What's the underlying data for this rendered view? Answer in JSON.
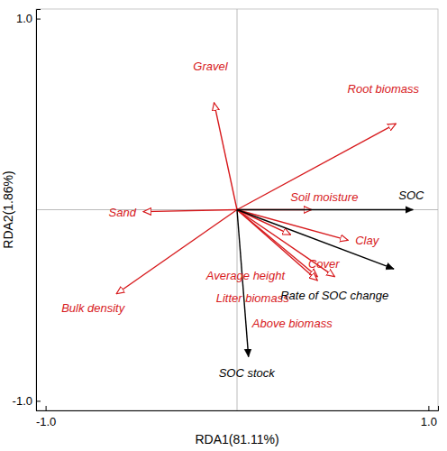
{
  "chart_data": {
    "type": "biplot",
    "x_label": "RDA1(81.11%)",
    "y_label": "RDA2(1.86%)",
    "xlim": [
      -1.05,
      1.05
    ],
    "ylim": [
      -1.05,
      1.05
    ],
    "xticks": [
      {
        "value": -1,
        "label": "-1.0"
      },
      {
        "value": 1,
        "label": "1.0"
      }
    ],
    "yticks": [
      {
        "value": -1,
        "label": "-1.0"
      },
      {
        "value": 1,
        "label": "1.0"
      }
    ],
    "grid": false,
    "series": [
      {
        "color": "#d7191c",
        "marker": "open-arrow",
        "labels": [
          "Gravel",
          "Root biomass",
          "Soil moisture",
          "Sand",
          "Clay",
          "Average height",
          "Cover",
          "Litter biomass",
          "Above biomass",
          "Bulk density"
        ],
        "x": [
          -0.12,
          0.83,
          0.39,
          -0.49,
          0.58,
          0.28,
          0.51,
          0.42,
          0.42,
          -0.63
        ],
        "values": [
          0.56,
          0.45,
          0.0,
          -0.01,
          -0.16,
          -0.13,
          -0.35,
          -0.35,
          -0.37,
          -0.44
        ]
      },
      {
        "color": "#000000",
        "marker": "filled-arrow",
        "labels": [
          "SOC",
          "Rate of SOC change",
          "SOC stock"
        ],
        "x": [
          0.92,
          0.82,
          0.06
        ],
        "values": [
          0.0,
          -0.31,
          -0.77
        ]
      }
    ]
  }
}
